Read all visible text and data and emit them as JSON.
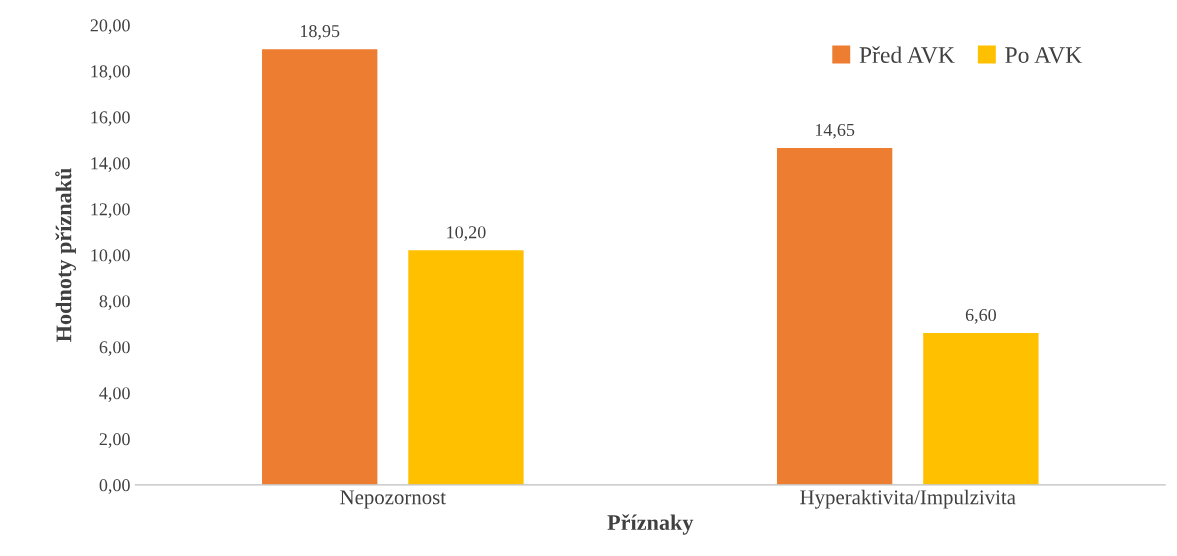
{
  "chart_data": {
    "type": "bar",
    "xlabel": "Příznaky",
    "ylabel": "Hodnoty příznaků",
    "categories": [
      "Nepozornost",
      "Hyperaktivita/Impulzivita"
    ],
    "series": [
      {
        "name": "Před AVK",
        "color": "#ed7d31",
        "values": [
          18.95,
          14.65
        ],
        "value_labels": [
          "18,95",
          "14,65"
        ]
      },
      {
        "name": "Po AVK",
        "color": "#ffc000",
        "values": [
          10.2,
          6.6
        ],
        "value_labels": [
          "10,20",
          "6,60"
        ]
      }
    ],
    "ylim": [
      0,
      20
    ],
    "yticks": [
      {
        "value": 0,
        "label": "0,00"
      },
      {
        "value": 2,
        "label": "2,00"
      },
      {
        "value": 4,
        "label": "4,00"
      },
      {
        "value": 6,
        "label": "6,00"
      },
      {
        "value": 8,
        "label": "8,00"
      },
      {
        "value": 10,
        "label": "10,00"
      },
      {
        "value": 12,
        "label": "12,00"
      },
      {
        "value": 14,
        "label": "14,00"
      },
      {
        "value": 16,
        "label": "16,00"
      },
      {
        "value": 18,
        "label": "18,00"
      },
      {
        "value": 20,
        "label": "20,00"
      }
    ],
    "legend": "top right",
    "grid": false
  }
}
